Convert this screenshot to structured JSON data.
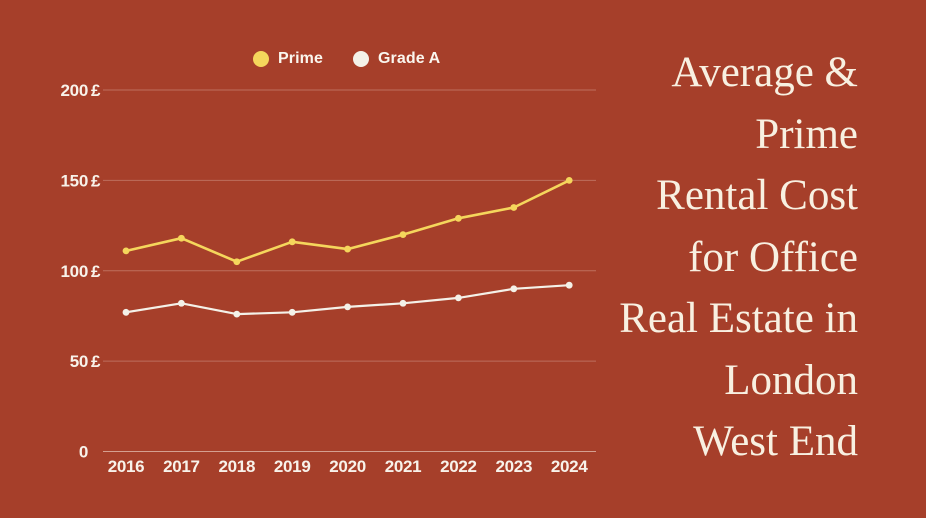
{
  "title": {
    "lines": [
      "Average &",
      "Prime",
      "Rental Cost",
      "for Office",
      "Real Estate in",
      "London",
      "West End"
    ]
  },
  "colors": {
    "background": "#a63f2a",
    "prime": "#f5d65c",
    "grade_a": "#f4f1e8",
    "grid": "rgba(252,238,228,0.28)",
    "zero_line": "rgba(252,238,228,0.55)",
    "axis_text": "#f8f2ea",
    "legend_text": "#faf6ee",
    "title_text": "#f8f0e1"
  },
  "chart_data": {
    "type": "line",
    "title": "Average & Prime Rental Cost for Office Real Estate in London West End",
    "categories": [
      "2016",
      "2017",
      "2018",
      "2019",
      "2020",
      "2021",
      "2022",
      "2023",
      "2024"
    ],
    "series": [
      {
        "name": "Prime",
        "color": "#f5d65c",
        "values": [
          111,
          118,
          105,
          116,
          112,
          120,
          129,
          135,
          150
        ]
      },
      {
        "name": "Grade A",
        "color": "#f4f1e8",
        "values": [
          77,
          82,
          76,
          77,
          80,
          82,
          85,
          90,
          92
        ]
      }
    ],
    "xlabel": "",
    "ylabel": "",
    "unit": "£",
    "ylim": [
      0,
      215
    ],
    "grid": "horizontal",
    "legend_position": "top",
    "y_axis": {
      "ticks": [
        {
          "value": 200,
          "number": "200",
          "unit": "£",
          "text": "200 £"
        },
        {
          "value": 150,
          "number": "150",
          "unit": "£",
          "text": "150 £"
        },
        {
          "value": 100,
          "number": "100",
          "unit": "£",
          "text": "100 £"
        },
        {
          "value": 50,
          "number": "50",
          "unit": "£",
          "text": "50 £"
        },
        {
          "value": 0,
          "number": "0",
          "unit": "",
          "text": "0"
        }
      ]
    }
  }
}
